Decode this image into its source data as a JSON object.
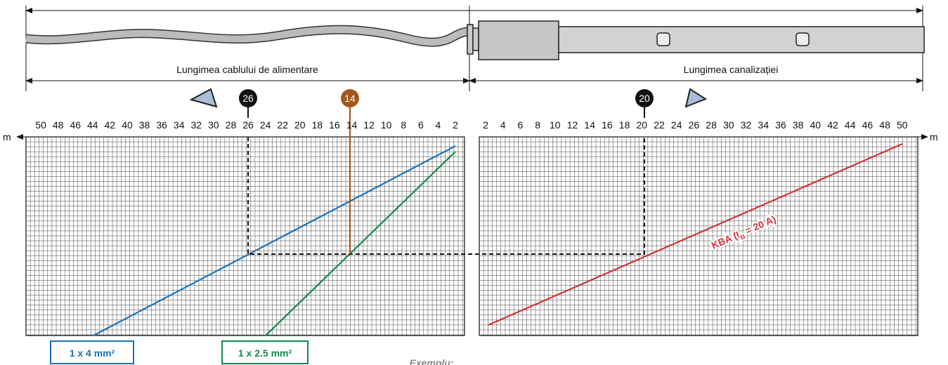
{
  "dimensions": {
    "cable_length": "Lungimea cablului de alimentare",
    "duct_length": "Lungimea canalizației"
  },
  "axes": {
    "unit": "m",
    "left_ticks": [
      50,
      48,
      46,
      44,
      42,
      40,
      38,
      36,
      34,
      32,
      30,
      28,
      26,
      24,
      22,
      20,
      18,
      16,
      14,
      12,
      10,
      8,
      6,
      4,
      2
    ],
    "right_ticks": [
      2,
      4,
      6,
      8,
      10,
      12,
      14,
      16,
      18,
      20,
      22,
      24,
      26,
      28,
      30,
      32,
      34,
      36,
      38,
      40,
      42,
      44,
      46,
      48,
      50
    ]
  },
  "markers": {
    "cable": "26",
    "section": "14",
    "duct": "20"
  },
  "curves": {
    "cable_4": "1 x 4 mm²",
    "cable_2_5": "1 x 2.5 mm²",
    "kba_prefix": "KBA (I",
    "kba_sub": "B",
    "kba_suffix": " = 20 A)"
  },
  "example": "Exemplu:"
}
